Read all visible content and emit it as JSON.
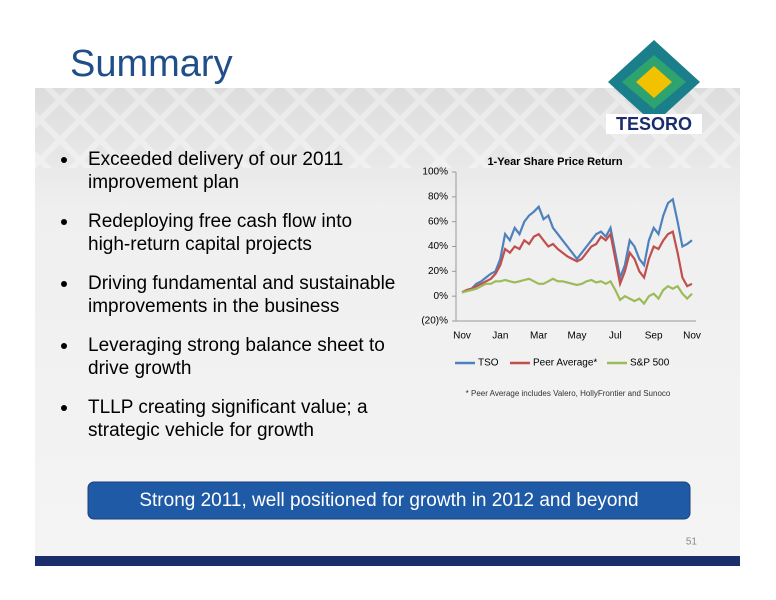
{
  "header": {
    "title": "Summary",
    "logo_text": "TESORO"
  },
  "bullets": [
    [
      "Exceeded delivery of our 2011",
      "improvement plan"
    ],
    [
      "Redeploying free cash flow into",
      "high-return capital projects"
    ],
    [
      "Driving fundamental and sustainable",
      "improvements in the business"
    ],
    [
      "Leveraging strong balance sheet to",
      "drive growth"
    ],
    [
      "TLLP creating significant value; a",
      "strategic vehicle for growth"
    ]
  ],
  "banner": "Strong 2011, well positioned for growth in 2012 and beyond",
  "page_number": "51",
  "footnote": "* Peer Average includes Valero, HollyFrontier and Sunoco",
  "chart_data": {
    "type": "line",
    "title": "1-Year Share Price Return",
    "categories": [
      "Nov",
      null,
      null,
      null,
      null,
      null,
      null,
      null,
      "Jan",
      null,
      null,
      null,
      null,
      null,
      null,
      null,
      "Mar",
      null,
      null,
      null,
      null,
      null,
      null,
      null,
      "May",
      null,
      null,
      null,
      null,
      null,
      null,
      null,
      "Jul",
      null,
      null,
      null,
      null,
      null,
      null,
      null,
      "Sep",
      null,
      null,
      null,
      null,
      null,
      null,
      null,
      "Nov"
    ],
    "series": [
      {
        "name": "TSO",
        "color": "#4f81bd",
        "values": [
          3,
          5,
          6,
          10,
          12,
          15,
          18,
          20,
          30,
          50,
          45,
          55,
          50,
          60,
          65,
          68,
          72,
          62,
          65,
          55,
          50,
          45,
          40,
          35,
          30,
          35,
          40,
          45,
          50,
          52,
          48,
          55,
          35,
          15,
          25,
          45,
          40,
          30,
          25,
          45,
          55,
          50,
          65,
          75,
          78,
          60,
          40,
          42,
          45
        ]
      },
      {
        "name": "Peer Average*",
        "color": "#c0504d",
        "values": [
          3,
          5,
          6,
          8,
          10,
          12,
          14,
          18,
          25,
          38,
          35,
          40,
          38,
          45,
          42,
          48,
          50,
          45,
          40,
          42,
          38,
          35,
          32,
          30,
          28,
          30,
          35,
          40,
          42,
          48,
          45,
          50,
          30,
          10,
          20,
          35,
          30,
          20,
          15,
          30,
          40,
          38,
          45,
          50,
          52,
          35,
          15,
          8,
          10
        ]
      },
      {
        "name": "S&P 500",
        "color": "#9bbb59",
        "values": [
          3,
          4,
          5,
          6,
          8,
          10,
          10,
          12,
          12,
          13,
          12,
          11,
          12,
          13,
          14,
          12,
          10,
          10,
          12,
          14,
          12,
          12,
          11,
          10,
          9,
          10,
          12,
          13,
          11,
          12,
          10,
          12,
          5,
          -3,
          0,
          -2,
          -4,
          -2,
          -6,
          0,
          2,
          -2,
          5,
          8,
          6,
          8,
          2,
          -2,
          2
        ]
      }
    ],
    "ylim": [
      -20,
      100
    ],
    "yticks": [
      {
        "value": -20,
        "label": "(20)%"
      },
      {
        "value": 0,
        "label": "0%"
      },
      {
        "value": 20,
        "label": "20%"
      },
      {
        "value": 40,
        "label": "40%"
      },
      {
        "value": 60,
        "label": "60%"
      },
      {
        "value": 80,
        "label": "80%"
      },
      {
        "value": 100,
        "label": "100%"
      }
    ]
  }
}
